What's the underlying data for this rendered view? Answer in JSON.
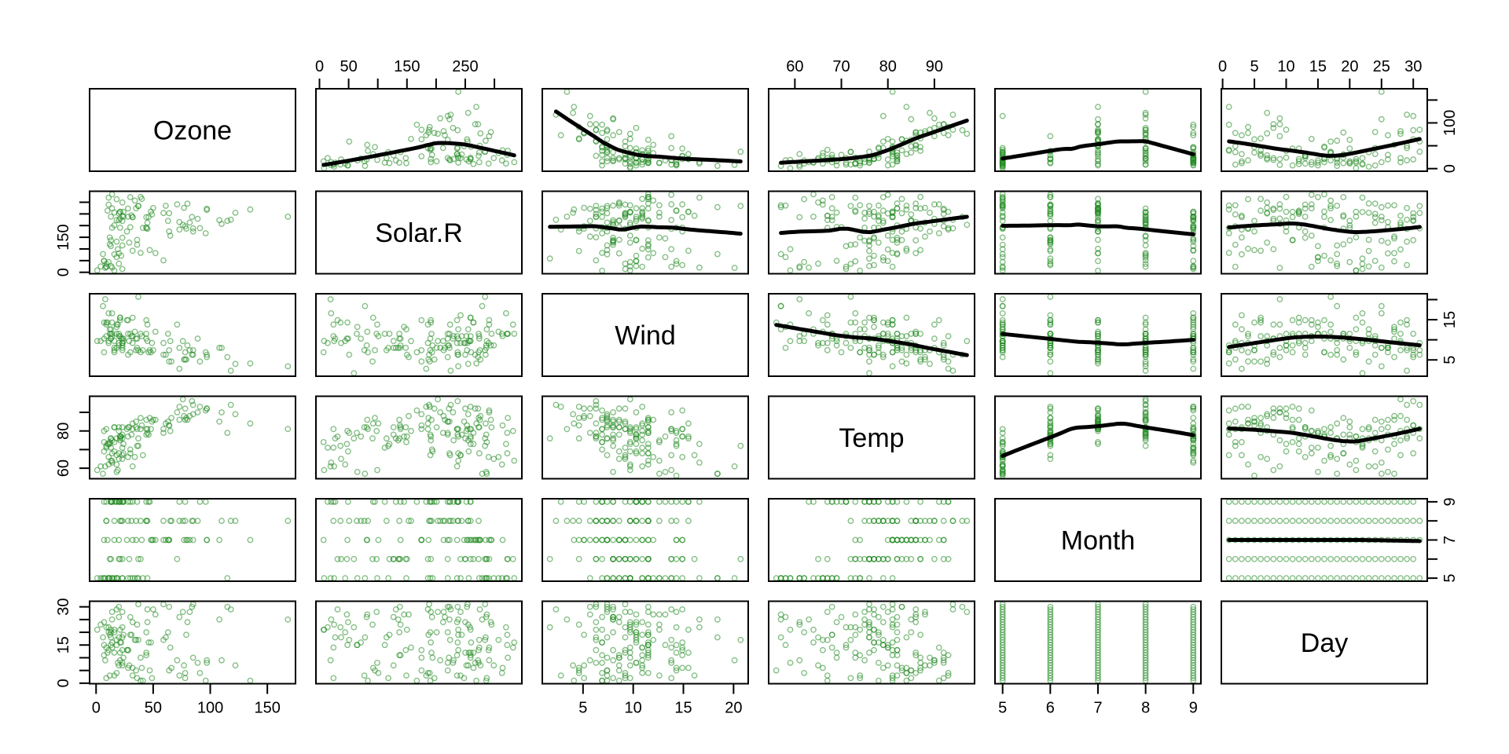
{
  "chart_data": {
    "type": "scatter",
    "subtype": "pairs-scatterplot-matrix",
    "title": "",
    "grid": "off",
    "panel_matrix": 6,
    "diagonal_labels": [
      "Ozone",
      "Solar.R",
      "Wind",
      "Temp",
      "Month",
      "Day"
    ],
    "point_style": {
      "shape": "open-circle",
      "color": "#228B22",
      "alpha": 0.55,
      "radius": 3.2,
      "stroke_width": 1.4
    },
    "smoother": {
      "placement": "upper-triangle-only",
      "method": "lowess",
      "span": 0.6667,
      "color": "#000000",
      "line_width": 5
    },
    "panel_border_color": "#000000",
    "background_color": "#ffffff",
    "variables": [
      {
        "name": "Ozone",
        "ticks": [
          0,
          50,
          100,
          150
        ],
        "labels_bottom": [
          "0",
          "50",
          "100",
          "150"
        ],
        "labels_right": {
          "0": "0",
          "100": "100"
        }
      },
      {
        "name": "Solar.R",
        "ticks": [
          0,
          50,
          100,
          150,
          200,
          250,
          300
        ],
        "labels_top": {
          "0": "0",
          "50": "50",
          "150": "150",
          "250": "250"
        },
        "labels_left": {
          "0": "0",
          "150": "150"
        }
      },
      {
        "name": "Wind",
        "ticks": [
          5,
          10,
          15,
          20
        ],
        "labels_bottom": [
          "5",
          "10",
          "15",
          "20"
        ],
        "labels_right": {
          "5": "5",
          "15": "15"
        }
      },
      {
        "name": "Temp",
        "ticks": [
          60,
          70,
          80,
          90
        ],
        "labels_top": {
          "60": "60",
          "70": "70",
          "80": "80",
          "90": "90"
        },
        "labels_left": {
          "60": "60",
          "80": "80"
        }
      },
      {
        "name": "Month",
        "ticks": [
          5,
          6,
          7,
          8,
          9
        ],
        "labels_bottom": [
          "5",
          "6",
          "7",
          "8",
          "9"
        ],
        "labels_right": {
          "5": "5",
          "7": "7",
          "9": "9"
        }
      },
      {
        "name": "Day",
        "ticks": [
          0,
          5,
          10,
          15,
          20,
          25,
          30
        ],
        "labels_top": {
          "0": "0",
          "5": "5",
          "10": "10",
          "15": "15",
          "20": "20",
          "25": "25",
          "30": "30"
        },
        "labels_left": {
          "0": "0",
          "15": "15",
          "30": "30"
        }
      }
    ],
    "observations": {
      "Ozone": [
        41,
        36,
        12,
        18,
        null,
        28,
        23,
        19,
        8,
        null,
        7,
        16,
        11,
        14,
        18,
        14,
        34,
        6,
        30,
        11,
        1,
        11,
        4,
        32,
        null,
        null,
        null,
        23,
        45,
        115,
        37,
        null,
        null,
        null,
        null,
        null,
        null,
        29,
        null,
        71,
        39,
        null,
        null,
        23,
        null,
        null,
        21,
        37,
        20,
        12,
        13,
        null,
        null,
        null,
        null,
        null,
        null,
        null,
        null,
        null,
        null,
        135,
        49,
        32,
        null,
        64,
        40,
        77,
        97,
        97,
        85,
        null,
        10,
        27,
        null,
        7,
        48,
        35,
        61,
        79,
        63,
        16,
        null,
        null,
        80,
        108,
        20,
        52,
        82,
        50,
        64,
        59,
        39,
        9,
        16,
        78,
        35,
        66,
        122,
        89,
        110,
        null,
        null,
        44,
        28,
        65,
        null,
        22,
        59,
        23,
        31,
        44,
        21,
        9,
        null,
        45,
        168,
        73,
        null,
        76,
        118,
        84,
        85,
        96,
        78,
        73,
        91,
        47,
        32,
        20,
        23,
        21,
        24,
        44,
        21,
        28,
        9,
        13,
        46,
        18,
        13,
        24,
        16,
        13,
        23,
        36,
        7,
        14,
        30,
        null,
        14,
        18,
        20
      ],
      "Solar.R": [
        190,
        118,
        149,
        313,
        null,
        null,
        299,
        99,
        19,
        194,
        null,
        256,
        290,
        274,
        65,
        334,
        307,
        78,
        322,
        44,
        8,
        320,
        25,
        236,
        279,
        286,
        287,
        242,
        186,
        220,
        284,
        286,
        287,
        242,
        186,
        220,
        264,
        127,
        273,
        291,
        323,
        259,
        250,
        148,
        332,
        322,
        191,
        284,
        37,
        120,
        137,
        150,
        59,
        91,
        250,
        135,
        127,
        47,
        98,
        31,
        138,
        269,
        248,
        236,
        101,
        175,
        314,
        276,
        267,
        272,
        175,
        139,
        264,
        175,
        291,
        48,
        260,
        274,
        285,
        187,
        220,
        7,
        258,
        295,
        294,
        223,
        81,
        82,
        213,
        275,
        253,
        254,
        83,
        24,
        77,
        null,
        null,
        null,
        255,
        229,
        207,
        222,
        137,
        192,
        273,
        157,
        64,
        71,
        51,
        115,
        244,
        190,
        259,
        36,
        255,
        212,
        238,
        215,
        153,
        203,
        225,
        237,
        188,
        167,
        197,
        183,
        189,
        95,
        92,
        252,
        220,
        230,
        259,
        236,
        259,
        238,
        24,
        112,
        237,
        224,
        27,
        238,
        201,
        238,
        14,
        139,
        49,
        20,
        193,
        145,
        191,
        131,
        223
      ],
      "Wind": [
        7.4,
        8,
        12.6,
        11.5,
        14.3,
        14.9,
        8.6,
        13.8,
        20.1,
        8.6,
        6.9,
        9.7,
        9.2,
        10.9,
        13.2,
        11.5,
        12,
        18.4,
        11.5,
        9.7,
        9.7,
        16.6,
        9.7,
        10.9,
        18.4,
        8,
        12.6,
        9.2,
        13.8,
        5.7,
        7.4,
        8.6,
        9.7,
        16.1,
        9.2,
        8.6,
        14.3,
        9.7,
        6.9,
        13.8,
        11.5,
        10.9,
        9.2,
        8,
        13.8,
        11.5,
        14.9,
        20.7,
        9.2,
        11.5,
        10.3,
        6.3,
        1.7,
        4.6,
        6.3,
        8,
        8,
        10.3,
        11.5,
        14.9,
        8,
        4.1,
        9.2,
        9.2,
        10.9,
        4.6,
        10.9,
        5.1,
        6.3,
        5.7,
        7.4,
        8.6,
        14.3,
        14.9,
        14.9,
        14.3,
        6.9,
        10.3,
        6.3,
        5.1,
        11.5,
        6.9,
        9.7,
        11.5,
        8.6,
        8,
        8.6,
        12,
        7.4,
        7.4,
        7.4,
        9.2,
        6.9,
        13.8,
        7.4,
        6.9,
        7.4,
        4.6,
        4,
        10.3,
        8,
        8.6,
        11.5,
        11.5,
        11.5,
        9.7,
        11.5,
        10.3,
        6.3,
        7.4,
        10.9,
        10.3,
        15.5,
        14.3,
        12.6,
        9.7,
        3.4,
        8,
        5.7,
        9.7,
        2.3,
        6.3,
        6.3,
        6.9,
        5.1,
        2.8,
        4.6,
        7.4,
        15.5,
        10.9,
        10.3,
        10.9,
        9.7,
        14.9,
        15.5,
        6.3,
        10.9,
        11.5,
        6.9,
        13.8,
        10.3,
        10.3,
        8,
        12.6,
        9.2,
        10.3,
        10.3,
        16.6,
        6.9,
        13.2,
        14.3,
        8,
        11.5
      ],
      "Temp": [
        67,
        72,
        74,
        62,
        56,
        66,
        65,
        59,
        61,
        69,
        74,
        69,
        66,
        68,
        58,
        64,
        66,
        57,
        68,
        62,
        59,
        73,
        61,
        61,
        57,
        58,
        57,
        67,
        81,
        79,
        76,
        78,
        74,
        67,
        84,
        85,
        79,
        82,
        87,
        90,
        87,
        93,
        92,
        82,
        80,
        79,
        77,
        72,
        65,
        73,
        76,
        77,
        76,
        76,
        76,
        75,
        78,
        73,
        80,
        77,
        83,
        84,
        85,
        81,
        84,
        83,
        83,
        88,
        92,
        92,
        89,
        82,
        73,
        81,
        91,
        80,
        81,
        82,
        84,
        87,
        85,
        74,
        81,
        82,
        86,
        85,
        82,
        86,
        88,
        86,
        83,
        81,
        81,
        81,
        82,
        86,
        85,
        87,
        89,
        90,
        90,
        92,
        86,
        86,
        82,
        80,
        79,
        77,
        79,
        76,
        78,
        78,
        77,
        72,
        75,
        79,
        81,
        86,
        88,
        97,
        94,
        96,
        94,
        91,
        92,
        93,
        93,
        87,
        84,
        80,
        78,
        75,
        73,
        81,
        76,
        77,
        71,
        71,
        78,
        67,
        76,
        68,
        82,
        64,
        71,
        81,
        69,
        63,
        70,
        77,
        75,
        76,
        68
      ],
      "Month": [
        5,
        5,
        5,
        5,
        5,
        5,
        5,
        5,
        5,
        5,
        5,
        5,
        5,
        5,
        5,
        5,
        5,
        5,
        5,
        5,
        5,
        5,
        5,
        5,
        5,
        5,
        5,
        5,
        5,
        5,
        5,
        6,
        6,
        6,
        6,
        6,
        6,
        6,
        6,
        6,
        6,
        6,
        6,
        6,
        6,
        6,
        6,
        6,
        6,
        6,
        6,
        6,
        6,
        6,
        6,
        6,
        6,
        6,
        6,
        6,
        6,
        7,
        7,
        7,
        7,
        7,
        7,
        7,
        7,
        7,
        7,
        7,
        7,
        7,
        7,
        7,
        7,
        7,
        7,
        7,
        7,
        7,
        7,
        7,
        7,
        7,
        7,
        7,
        7,
        7,
        7,
        7,
        8,
        8,
        8,
        8,
        8,
        8,
        8,
        8,
        8,
        8,
        8,
        8,
        8,
        8,
        8,
        8,
        8,
        8,
        8,
        8,
        8,
        8,
        8,
        8,
        8,
        8,
        8,
        8,
        8,
        8,
        8,
        9,
        9,
        9,
        9,
        9,
        9,
        9,
        9,
        9,
        9,
        9,
        9,
        9,
        9,
        9,
        9,
        9,
        9,
        9,
        9,
        9,
        9,
        9,
        9,
        9,
        9,
        9,
        9,
        9,
        9
      ],
      "Day": [
        1,
        2,
        3,
        4,
        5,
        6,
        7,
        8,
        9,
        10,
        11,
        12,
        13,
        14,
        15,
        16,
        17,
        18,
        19,
        20,
        21,
        22,
        23,
        24,
        25,
        26,
        27,
        28,
        29,
        30,
        31,
        1,
        2,
        3,
        4,
        5,
        6,
        7,
        8,
        9,
        10,
        11,
        12,
        13,
        14,
        15,
        16,
        17,
        18,
        19,
        20,
        21,
        22,
        23,
        24,
        25,
        26,
        27,
        28,
        29,
        30,
        1,
        2,
        3,
        4,
        5,
        6,
        7,
        8,
        9,
        10,
        11,
        12,
        13,
        14,
        15,
        16,
        17,
        18,
        19,
        20,
        21,
        22,
        23,
        24,
        25,
        26,
        27,
        28,
        29,
        30,
        31,
        1,
        2,
        3,
        4,
        5,
        6,
        7,
        8,
        9,
        10,
        11,
        12,
        13,
        14,
        15,
        16,
        17,
        18,
        19,
        20,
        21,
        22,
        23,
        24,
        25,
        26,
        27,
        28,
        29,
        30,
        31,
        1,
        2,
        3,
        4,
        5,
        6,
        7,
        8,
        9,
        10,
        11,
        12,
        13,
        14,
        15,
        16,
        17,
        18,
        19,
        20,
        21,
        22,
        23,
        24,
        25,
        26,
        27,
        28,
        29,
        30
      ]
    }
  }
}
